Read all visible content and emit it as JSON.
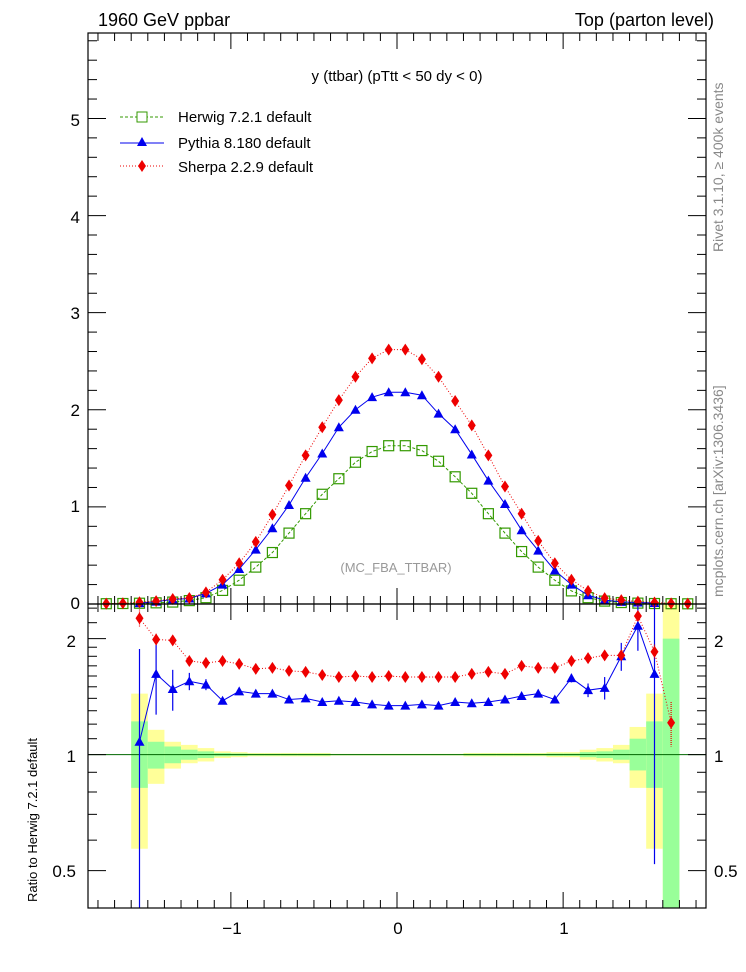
{
  "header": {
    "left": "1960 GeV ppbar",
    "right": "Top (parton level)"
  },
  "side": {
    "rivet": "Rivet 3.1.10, ≥ 400k events",
    "mcplots": "mcplots.cern.ch [arXiv:1306.3436]"
  },
  "colors": {
    "herwig": "#339900",
    "pythia": "#0000ee",
    "sherpa": "#ee0000",
    "band_yellow": "#ffff99",
    "band_green": "#99ff99"
  },
  "chart_data": [
    {
      "type": "line",
      "title": "y (ttbar) (pTtt < 50 dy < 0)",
      "watermark": "(MC_FBA_TTBAR)",
      "xlabel": "",
      "ylabel": "",
      "xlim": [
        -1.86,
        1.86
      ],
      "ylim": [
        0,
        5.88
      ],
      "xticks": [
        "−1",
        "0",
        "1"
      ],
      "yticks": [
        "0",
        "1",
        "2",
        "3",
        "4",
        "5"
      ],
      "legend": "top-left",
      "x": [
        -1.75,
        -1.65,
        -1.55,
        -1.45,
        -1.35,
        -1.25,
        -1.15,
        -1.05,
        -0.95,
        -0.85,
        -0.75,
        -0.65,
        -0.55,
        -0.45,
        -0.35,
        -0.25,
        -0.15,
        -0.05,
        0.05,
        0.15,
        0.25,
        0.35,
        0.45,
        0.55,
        0.65,
        0.75,
        0.85,
        0.95,
        1.05,
        1.15,
        1.25,
        1.35,
        1.45,
        1.55,
        1.65,
        1.75
      ],
      "series": [
        {
          "name": "Herwig 7.2.1 default",
          "values": [
            0.003,
            0.005,
            0.008,
            0.012,
            0.02,
            0.035,
            0.065,
            0.14,
            0.245,
            0.38,
            0.53,
            0.73,
            0.93,
            1.13,
            1.29,
            1.46,
            1.57,
            1.63,
            1.63,
            1.58,
            1.47,
            1.31,
            1.14,
            0.93,
            0.73,
            0.54,
            0.38,
            0.245,
            0.135,
            0.065,
            0.03,
            0.015,
            0.009,
            0.005,
            0.003,
            0.002
          ]
        },
        {
          "name": "Pythia 8.180 default",
          "values": [
            null,
            null,
            0.009,
            0.024,
            0.047,
            0.057,
            0.11,
            0.2,
            0.36,
            0.56,
            0.78,
            1.02,
            1.3,
            1.55,
            1.82,
            2.0,
            2.13,
            2.18,
            2.18,
            2.15,
            1.96,
            1.8,
            1.54,
            1.27,
            1.03,
            0.76,
            0.55,
            0.345,
            0.2,
            0.09,
            0.04,
            0.022,
            0.015,
            0.01,
            null,
            null
          ]
        },
        {
          "name": "Sherpa 2.2.9 default",
          "values": [
            0.004,
            0.008,
            0.018,
            0.03,
            0.052,
            0.062,
            0.12,
            0.25,
            0.42,
            0.64,
            0.92,
            1.22,
            1.53,
            1.82,
            2.1,
            2.34,
            2.53,
            2.62,
            2.62,
            2.52,
            2.34,
            2.09,
            1.84,
            1.53,
            1.21,
            0.93,
            0.65,
            0.42,
            0.25,
            0.135,
            0.06,
            0.04,
            0.025,
            0.016,
            0.006,
            0.004
          ]
        }
      ]
    },
    {
      "type": "line",
      "ylabel": "Ratio to Herwig 7.2.1 default",
      "yscale": "log",
      "xlim": [
        -1.86,
        1.86
      ],
      "ylim": [
        0.4,
        2.46
      ],
      "xticks": [
        "−1",
        "0",
        "1"
      ],
      "yticks": [
        "0.5",
        "1",
        "2"
      ],
      "band_x": [
        -1.55,
        -1.45,
        -1.35,
        -1.25,
        -1.15,
        -1.05,
        -0.95,
        -0.85,
        -0.75,
        -0.65,
        -0.55,
        -0.45,
        -0.35,
        -0.25,
        -0.15,
        -0.05,
        0.05,
        0.15,
        0.25,
        0.35,
        0.45,
        0.55,
        0.65,
        0.75,
        0.85,
        0.95,
        1.05,
        1.15,
        1.25,
        1.35,
        1.45,
        1.55,
        1.65
      ],
      "band_width": 0.1,
      "yellow_lo": [
        0.57,
        0.84,
        0.92,
        0.95,
        0.96,
        0.98,
        0.985,
        0.99,
        0.99,
        0.99,
        0.99,
        0.99,
        0.995,
        0.995,
        0.995,
        0.995,
        0.995,
        0.995,
        0.995,
        0.995,
        0.99,
        0.99,
        0.99,
        0.99,
        0.99,
        0.985,
        0.985,
        0.97,
        0.96,
        0.95,
        0.82,
        0.57,
        0.3
      ],
      "yellow_hi": [
        1.44,
        1.16,
        1.08,
        1.06,
        1.04,
        1.02,
        1.015,
        1.01,
        1.01,
        1.01,
        1.01,
        1.01,
        1.005,
        1.005,
        1.005,
        1.005,
        1.005,
        1.005,
        1.005,
        1.005,
        1.01,
        1.01,
        1.01,
        1.01,
        1.01,
        1.015,
        1.015,
        1.03,
        1.04,
        1.06,
        1.18,
        1.44,
        3.0
      ],
      "green_lo": [
        0.82,
        0.92,
        0.95,
        0.97,
        0.98,
        0.99,
        0.993,
        0.995,
        0.995,
        0.995,
        0.995,
        0.995,
        0.997,
        0.997,
        0.997,
        0.997,
        0.997,
        0.997,
        0.997,
        0.997,
        0.995,
        0.995,
        0.995,
        0.995,
        0.995,
        0.993,
        0.993,
        0.985,
        0.98,
        0.97,
        0.91,
        0.82,
        0.3
      ],
      "green_hi": [
        1.22,
        1.08,
        1.05,
        1.03,
        1.02,
        1.01,
        1.007,
        1.005,
        1.005,
        1.005,
        1.005,
        1.005,
        1.003,
        1.003,
        1.003,
        1.003,
        1.003,
        1.003,
        1.003,
        1.003,
        1.005,
        1.005,
        1.005,
        1.005,
        1.005,
        1.007,
        1.007,
        1.015,
        1.02,
        1.03,
        1.1,
        1.22,
        2.0
      ],
      "series": [
        {
          "name": "Pythia 8.180 default",
          "x0": -1.55,
          "values": [
            1.08,
            1.62,
            1.48,
            1.55,
            1.52,
            1.38,
            1.46,
            1.44,
            1.44,
            1.39,
            1.4,
            1.37,
            1.38,
            1.37,
            1.35,
            1.34,
            1.34,
            1.35,
            1.34,
            1.37,
            1.36,
            1.37,
            1.39,
            1.42,
            1.44,
            1.39,
            1.58,
            1.47,
            1.49,
            1.8,
            2.16,
            1.62
          ],
          "errors": [
            0.8,
            0.35,
            0.18,
            0.08,
            0.05,
            0.03,
            0.02,
            0.015,
            0.01,
            0.01,
            0.01,
            0.01,
            0.01,
            0.01,
            0.01,
            0.01,
            0.01,
            0.01,
            0.01,
            0.01,
            0.01,
            0.01,
            0.01,
            0.015,
            0.02,
            0.03,
            0.04,
            0.06,
            0.1,
            0.15,
            0.3,
            1.1
          ]
        },
        {
          "name": "Sherpa 2.2.9 default",
          "x0": -1.55,
          "values": [
            2.26,
            1.99,
            1.98,
            1.75,
            1.73,
            1.75,
            1.72,
            1.67,
            1.68,
            1.65,
            1.64,
            1.61,
            1.59,
            1.6,
            1.59,
            1.6,
            1.59,
            1.59,
            1.59,
            1.59,
            1.62,
            1.64,
            1.62,
            1.7,
            1.68,
            1.68,
            1.75,
            1.78,
            1.81,
            1.81,
            2.29,
            1.85,
            1.21
          ],
          "errors": [
            0.12,
            0.07,
            0.05,
            0.02,
            0.02,
            0.015,
            0.01,
            0.01,
            0.01,
            0.01,
            0.01,
            0.01,
            0.01,
            0.01,
            0.01,
            0.01,
            0.01,
            0.01,
            0.01,
            0.01,
            0.01,
            0.01,
            0.01,
            0.01,
            0.01,
            0.01,
            0.015,
            0.02,
            0.02,
            0.03,
            0.06,
            0.08,
            0.16
          ]
        }
      ]
    }
  ]
}
